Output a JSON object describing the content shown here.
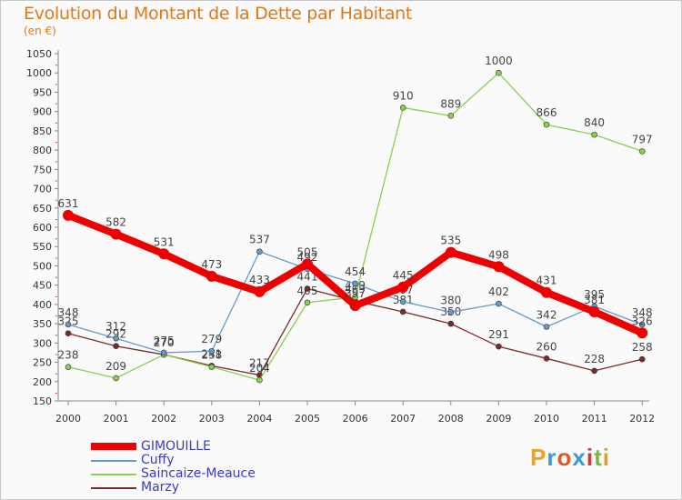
{
  "header": {
    "title": "Evolution du Montant de la Dette par Habitant",
    "unit": "(en €)"
  },
  "brand": {
    "text": "Proxiti",
    "colors": [
      "#f0a020",
      "#3a9ad8",
      "#e05a20",
      "#3a9ad8",
      "#e03030",
      "#7ab648",
      "#e0a020"
    ]
  },
  "chart_data": {
    "type": "line",
    "title": "Evolution du Montant de la Dette par Habitant",
    "ylabel": "(en €)",
    "xlabel": "",
    "x": [
      "2000",
      "2001",
      "2002",
      "2003",
      "2004",
      "2005",
      "2006",
      "2007",
      "2008",
      "2009",
      "2010",
      "2011",
      "2012"
    ],
    "ylim": [
      150,
      1050
    ],
    "yticks": [
      150,
      200,
      250,
      300,
      350,
      400,
      450,
      500,
      550,
      600,
      650,
      700,
      750,
      800,
      850,
      900,
      950,
      1000,
      1050
    ],
    "grid": false,
    "legend_position": "bottom-left",
    "series": [
      {
        "name": "Marzy",
        "color": "#7a2a2a",
        "values": [
          325,
          292,
          270,
          241,
          217,
          441,
          409,
          381,
          350,
          291,
          260,
          228,
          258
        ]
      },
      {
        "name": "Saincaize-Meauce",
        "color": "#88d050",
        "values": [
          238,
          209,
          270,
          238,
          204,
          405,
          419,
          910,
          889,
          1000,
          866,
          840,
          797
        ]
      },
      {
        "name": "Cuffy",
        "color": "#6699cc",
        "values": [
          348,
          312,
          275,
          279,
          537,
          492,
          454,
          407,
          380,
          402,
          342,
          395,
          348
        ]
      },
      {
        "name": "GIMOUILLE",
        "color": "#ee0000",
        "values": [
          631,
          582,
          531,
          473,
          433,
          505,
          397,
          445,
          535,
          498,
          431,
          381,
          326
        ]
      }
    ],
    "legend_order": [
      "GIMOUILLE",
      "Cuffy",
      "Saincaize-Meauce",
      "Marzy"
    ]
  }
}
